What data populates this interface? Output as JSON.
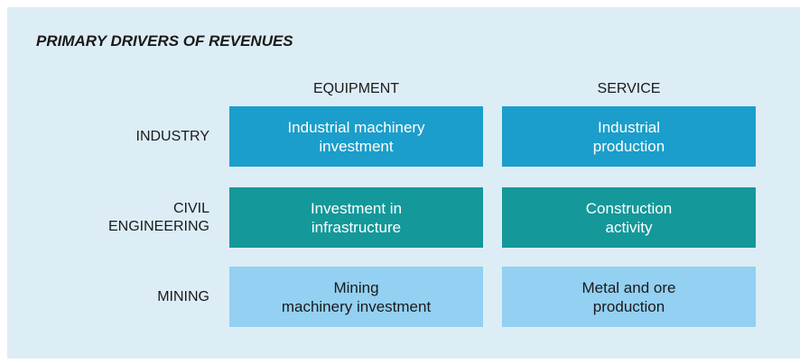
{
  "title": "PRIMARY DRIVERS OF REVENUES",
  "columns": [
    "EQUIPMENT",
    "SERVICE"
  ],
  "rows": [
    {
      "label": [
        "INDUSTRY"
      ],
      "cells": [
        [
          "Industrial machinery",
          "investment"
        ],
        [
          "Industrial",
          "production"
        ]
      ]
    },
    {
      "label": [
        "CIVIL",
        "ENGINEERING"
      ],
      "cells": [
        [
          "Investment in",
          "infrastructure"
        ],
        [
          "Construction",
          "activity"
        ]
      ]
    },
    {
      "label": [
        "MINING"
      ],
      "cells": [
        [
          "Mining",
          "machinery investment"
        ],
        [
          "Metal and ore",
          "production"
        ]
      ]
    }
  ]
}
